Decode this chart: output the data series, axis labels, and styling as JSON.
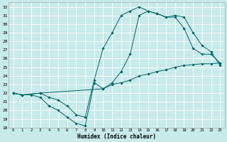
{
  "xlabel": "Humidex (Indice chaleur)",
  "bg_color": "#c8eaea",
  "grid_color": "#ffffff",
  "line_color": "#006666",
  "xlim": [
    -0.5,
    23.5
  ],
  "ylim": [
    18,
    32.5
  ],
  "xticks": [
    0,
    1,
    2,
    3,
    4,
    5,
    6,
    7,
    8,
    9,
    10,
    11,
    12,
    13,
    14,
    15,
    16,
    17,
    18,
    19,
    20,
    21,
    22,
    23
  ],
  "yticks": [
    18,
    19,
    20,
    21,
    22,
    23,
    24,
    25,
    26,
    27,
    28,
    29,
    30,
    31,
    32
  ],
  "line1_x": [
    0,
    1,
    2,
    3,
    4,
    5,
    6,
    7,
    8,
    9,
    10,
    11,
    12,
    13,
    14,
    15,
    16,
    17,
    18,
    19,
    20,
    21,
    22,
    23
  ],
  "line1_y": [
    22.0,
    21.8,
    21.8,
    21.5,
    20.5,
    20.0,
    19.2,
    18.5,
    18.2,
    23.2,
    22.5,
    23.0,
    23.2,
    23.5,
    24.0,
    24.2,
    24.5,
    24.7,
    25.0,
    25.2,
    25.3,
    25.4,
    25.4,
    25.5
  ],
  "line2_x": [
    0,
    1,
    3,
    4,
    5,
    6,
    7,
    8,
    9,
    10,
    11,
    12,
    13,
    14,
    15,
    16,
    17,
    18,
    19,
    20,
    21,
    22,
    23
  ],
  "line2_y": [
    22.0,
    21.8,
    22.0,
    21.5,
    21.2,
    20.5,
    19.5,
    19.2,
    23.5,
    27.2,
    29.0,
    31.0,
    31.5,
    32.0,
    31.5,
    31.2,
    30.8,
    30.8,
    29.5,
    27.2,
    26.5,
    26.5,
    25.5
  ],
  "line3_x": [
    0,
    1,
    3,
    10,
    11,
    12,
    13,
    14,
    15,
    16,
    17,
    18,
    19,
    20,
    21,
    22,
    23
  ],
  "line3_y": [
    22.0,
    21.8,
    22.0,
    22.5,
    23.2,
    24.5,
    26.5,
    31.0,
    31.5,
    31.2,
    30.8,
    31.0,
    30.8,
    29.0,
    27.5,
    26.8,
    25.2
  ]
}
